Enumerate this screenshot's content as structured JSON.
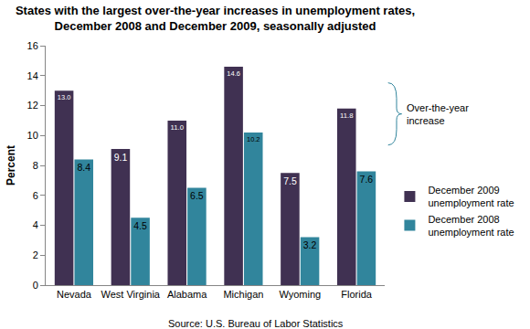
{
  "chart_data": {
    "type": "bar",
    "title": "States with the largest over-the-year increases in unemployment rates, December 2008 and December 2009, seasonally adjusted",
    "ylabel": "Percent",
    "categories": [
      "Nevada",
      "West Virginia",
      "Alabama",
      "Michigan",
      "Wyoming",
      "Florida"
    ],
    "series": [
      {
        "name": "December 2009 unemployment rate",
        "color": "#403152",
        "values": [
          13.0,
          9.1,
          11.0,
          14.6,
          7.5,
          11.8
        ],
        "value_labels": [
          "13.0",
          "9.1",
          "11.0",
          "14.6",
          "7.5",
          "11.8"
        ]
      },
      {
        "name": "December 2008 unemployment rate",
        "color": "#31859c",
        "values": [
          8.4,
          4.5,
          6.5,
          10.2,
          3.2,
          7.6
        ],
        "value_labels": [
          "8.4",
          "4.5",
          "6.5",
          "10.2",
          "3.2",
          "7.6"
        ]
      }
    ],
    "ylim": [
      0,
      16
    ],
    "yticks": [
      0,
      2,
      4,
      6,
      8,
      10,
      12,
      14,
      16
    ],
    "grid": false,
    "legend": "right",
    "data_labels": true,
    "annotations": [
      "Over-the-year increase",
      "Source: U.S. Bureau of Labor Statistics"
    ]
  }
}
